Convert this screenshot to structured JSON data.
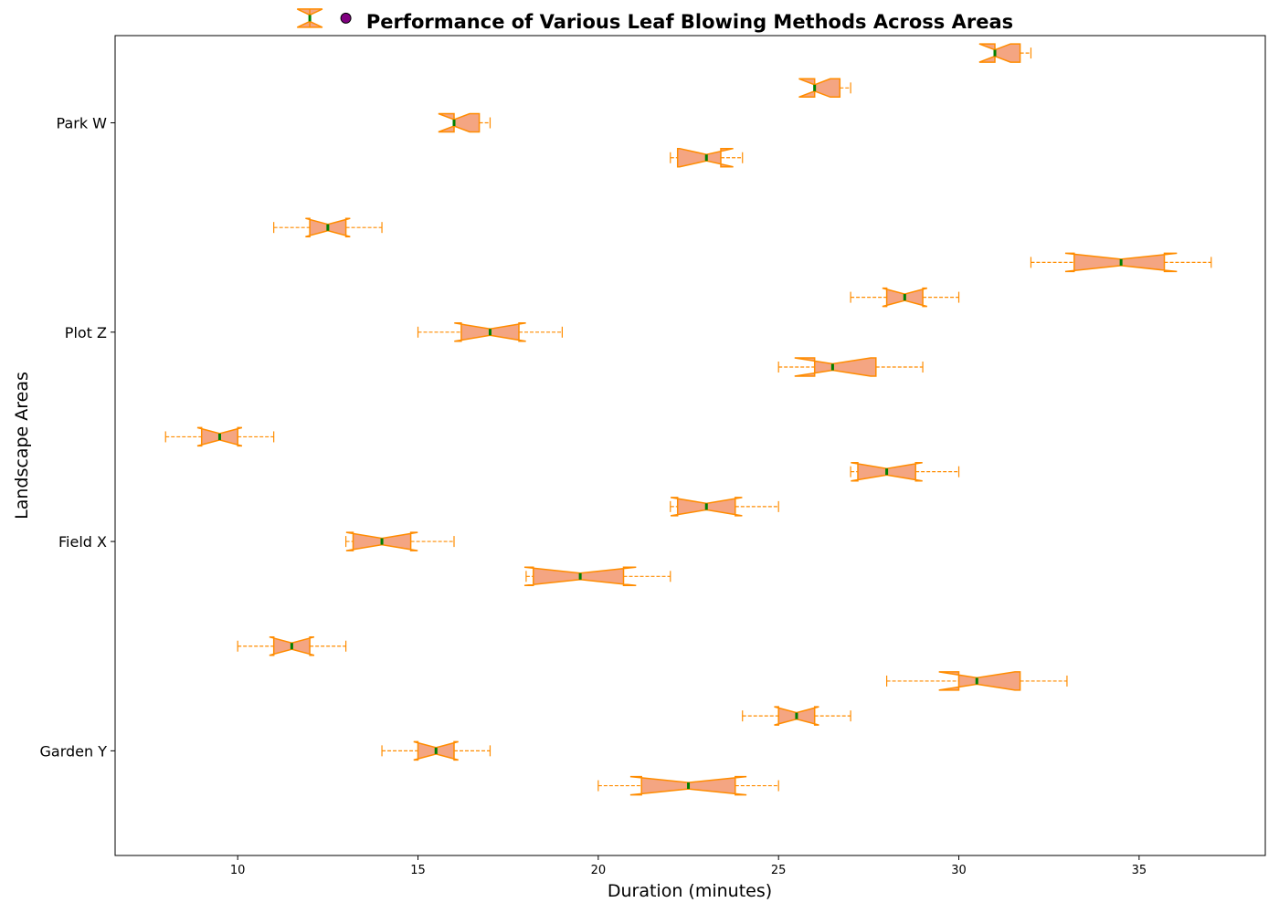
{
  "chart_data": {
    "type": "boxplot",
    "orientation": "horizontal",
    "notched": true,
    "title": "Performance of Various Leaf Blowing Methods Across Areas",
    "xlabel": "Duration (minutes)",
    "ylabel": "Landscape Areas",
    "xlim": [
      6.6,
      38.5
    ],
    "xticks": [
      10,
      15,
      20,
      25,
      30,
      35
    ],
    "ytick_labels": [
      "Garden Y",
      "Field X",
      "Plot Z",
      "Park W"
    ],
    "ytick_positions": [
      4,
      10,
      16,
      22
    ],
    "ylim": [
      1.0,
      24.5
    ],
    "colors": {
      "box_fill": "#f4a582",
      "box_edge": "#ff8c00",
      "whisker": "#ff8c00",
      "median": "#008000",
      "outlier": "#800080"
    },
    "boxes": [
      {
        "pos": 3,
        "whislo": 20,
        "q1": 21.2,
        "med": 22.5,
        "q3": 23.8,
        "whishi": 25
      },
      {
        "pos": 4,
        "whislo": 14,
        "q1": 15.0,
        "med": 15.5,
        "q3": 16.0,
        "whishi": 17
      },
      {
        "pos": 5,
        "whislo": 24,
        "q1": 25.0,
        "med": 25.5,
        "q3": 26.0,
        "whishi": 27
      },
      {
        "pos": 6,
        "whislo": 28,
        "q1": 30.0,
        "med": 30.5,
        "q3": 31.7,
        "whishi": 33
      },
      {
        "pos": 7,
        "whislo": 10,
        "q1": 11.0,
        "med": 11.5,
        "q3": 12.0,
        "whishi": 13
      },
      {
        "pos": 9,
        "whislo": 18,
        "q1": 18.2,
        "med": 19.5,
        "q3": 20.7,
        "whishi": 22
      },
      {
        "pos": 10,
        "whislo": 13,
        "q1": 13.2,
        "med": 14.0,
        "q3": 14.8,
        "whishi": 16
      },
      {
        "pos": 11,
        "whislo": 22,
        "q1": 22.2,
        "med": 23.0,
        "q3": 23.8,
        "whishi": 25
      },
      {
        "pos": 12,
        "whislo": 27,
        "q1": 27.2,
        "med": 28.0,
        "q3": 28.8,
        "whishi": 30
      },
      {
        "pos": 13,
        "whislo": 8,
        "q1": 9.0,
        "med": 9.5,
        "q3": 10.0,
        "whishi": 11
      },
      {
        "pos": 15,
        "whislo": 25,
        "q1": 26.0,
        "med": 26.5,
        "q3": 27.7,
        "whishi": 29
      },
      {
        "pos": 16,
        "whislo": 15,
        "q1": 16.2,
        "med": 17.0,
        "q3": 17.8,
        "whishi": 19
      },
      {
        "pos": 17,
        "whislo": 27,
        "q1": 28.0,
        "med": 28.5,
        "q3": 29.0,
        "whishi": 30
      },
      {
        "pos": 18,
        "whislo": 32,
        "q1": 33.2,
        "med": 34.5,
        "q3": 35.7,
        "whishi": 37
      },
      {
        "pos": 19,
        "whislo": 11,
        "q1": 12.0,
        "med": 12.5,
        "q3": 13.0,
        "whishi": 14
      },
      {
        "pos": 21,
        "whislo": 22,
        "q1": 22.2,
        "med": 23.0,
        "q3": 23.4,
        "whishi": 24
      },
      {
        "pos": 22,
        "whislo": 16,
        "q1": 16.0,
        "med": 16.0,
        "q3": 16.7,
        "whishi": 17
      },
      {
        "pos": 23,
        "whislo": 26,
        "q1": 26.0,
        "med": 26.0,
        "q3": 26.7,
        "whishi": 27
      },
      {
        "pos": 24,
        "whislo": 31,
        "q1": 31.0,
        "med": 31.0,
        "q3": 31.7,
        "whishi": 32
      },
      {
        "pos": 25,
        "whislo": 12,
        "q1": 12.0,
        "med": 12.0,
        "q3": 12.0,
        "whishi": 12,
        "outliers": [
          13
        ]
      }
    ]
  }
}
